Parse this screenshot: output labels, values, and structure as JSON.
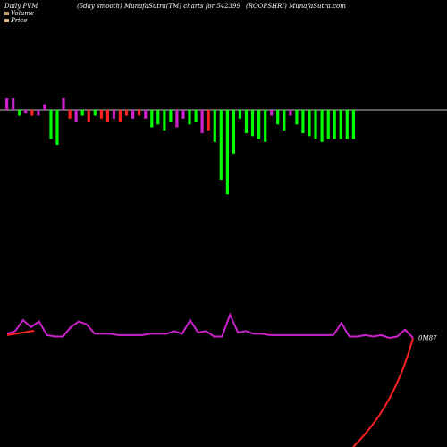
{
  "header": {
    "left": "Daily PVM",
    "middle": "(5day smooth) MunafaSutra(TM) charts for 542399",
    "right": "(ROOPSHRI) MunafaSutra.com"
  },
  "legend": {
    "volume": "Volume",
    "price": "Price",
    "volume_color": "#c8a070",
    "price_color": "#e0b080"
  },
  "colors": {
    "background": "#000000",
    "volume_up": "#ff2020",
    "volume_down": "#00ff00",
    "volume_neutral": "#cc22cc",
    "price_line": "#cc22cc",
    "projection_line": "#ff2020",
    "baseline": "#ffffff"
  },
  "chart_data": [
    {
      "type": "bar",
      "description_role": "volume (5-day smoothed, signed)",
      "baseline_visible": true,
      "series": [
        {
          "values": [
            4,
            4,
            -2,
            -1,
            -2,
            -2,
            2,
            -10,
            -12,
            4,
            -3,
            -4,
            -2,
            -4,
            -2,
            -3,
            -4,
            -3,
            -4,
            -2,
            -3,
            -2,
            -3,
            -6,
            -5,
            -7,
            -4,
            -6,
            -3,
            -5,
            -4,
            -8,
            -7,
            -11,
            -24,
            -29,
            -15,
            -3,
            -8,
            -9,
            -10,
            -11,
            -2,
            -5,
            -7,
            -2,
            -5,
            -8,
            -9,
            -10,
            -11,
            -10,
            -10,
            -10,
            -10,
            -10
          ]
        }
      ],
      "bar_colors": [
        "m",
        "m",
        "g",
        "m",
        "r",
        "m",
        "m",
        "g",
        "g",
        "m",
        "r",
        "m",
        "g",
        "r",
        "g",
        "r",
        "r",
        "m",
        "r",
        "r",
        "m",
        "r",
        "m",
        "g",
        "g",
        "g",
        "g",
        "m",
        "m",
        "g",
        "g",
        "m",
        "r",
        "g",
        "g",
        "g",
        "g",
        "g",
        "g",
        "g",
        "g",
        "g",
        "m",
        "g",
        "g",
        "m",
        "g",
        "g",
        "g",
        "g",
        "g",
        "g",
        "g",
        "g",
        "g",
        "g"
      ]
    },
    {
      "type": "line",
      "description_role": "price",
      "end_label": "0M87",
      "series": [
        {
          "values": [
            0.9,
            0.92,
            1.0,
            0.95,
            0.99,
            0.89,
            0.88,
            0.88,
            0.95,
            0.99,
            0.97,
            0.9,
            0.9,
            0.9,
            0.89,
            0.89,
            0.89,
            0.89,
            0.9,
            0.9,
            0.9,
            0.92,
            0.9,
            1.0,
            0.91,
            0.92,
            0.88,
            0.88,
            1.04,
            0.91,
            0.92,
            0.9,
            0.9,
            0.89,
            0.89,
            0.89,
            0.89,
            0.89,
            0.89,
            0.89,
            0.89,
            0.89,
            0.98,
            0.88,
            0.88,
            0.89,
            0.88,
            0.89,
            0.87,
            0.88,
            0.93,
            0.87
          ]
        }
      ],
      "projection": {
        "values": [
          0.89,
          0.1,
          null,
          null,
          null,
          null,
          null,
          null,
          null,
          null,
          0.05,
          0.15,
          0.3,
          0.45,
          0.6,
          0.87
        ]
      }
    }
  ]
}
